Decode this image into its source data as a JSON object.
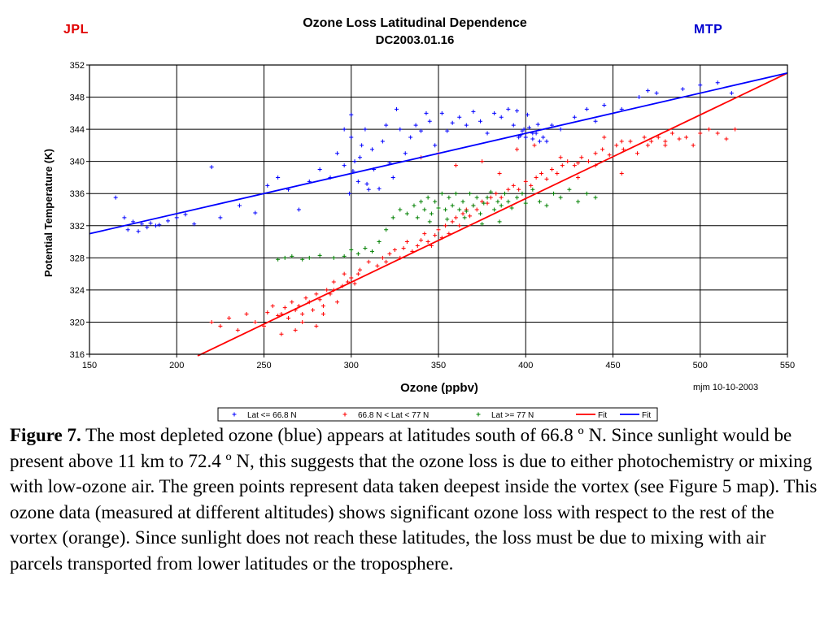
{
  "header": {
    "left_tag": "JPL",
    "right_tag": "MTP",
    "left_tag_color": "#e00000",
    "right_tag_color": "#0000d0"
  },
  "chart_data": {
    "type": "scatter",
    "title": "Ozone Loss Latitudinal Dependence",
    "subtitle": "DC2003.01.16",
    "xlabel": "Ozone (ppbv)",
    "ylabel": "Potential Temperature (K)",
    "xlim": [
      150,
      550
    ],
    "ylim": [
      316,
      352
    ],
    "xticks": [
      150,
      200,
      250,
      300,
      350,
      400,
      450,
      500,
      550
    ],
    "yticks": [
      316,
      320,
      324,
      328,
      332,
      336,
      340,
      344,
      348,
      352
    ],
    "grid": true,
    "credit": "mjm 10-10-2003",
    "legend_position": "bottom",
    "series": [
      {
        "name": "Lat <= 66.8 N",
        "color": "#0000ff",
        "marker": "plus",
        "x": [
          165,
          170,
          175,
          180,
          185,
          190,
          195,
          172,
          178,
          183,
          188,
          200,
          205,
          210,
          220,
          225,
          236,
          245,
          252,
          258,
          264,
          270,
          276,
          282,
          288,
          292,
          296,
          300,
          300,
          302,
          304,
          306,
          308,
          310,
          312,
          296,
          299,
          301,
          305,
          309,
          313,
          316,
          318,
          320,
          322,
          324,
          326,
          328,
          331,
          334,
          337,
          340,
          343,
          345,
          348,
          352,
          355,
          358,
          362,
          366,
          370,
          374,
          378,
          382,
          386,
          390,
          393,
          396,
          398,
          400,
          402,
          404,
          406,
          408,
          395,
          397,
          399,
          401,
          404,
          407,
          410,
          412,
          415,
          420,
          428,
          435,
          445,
          455,
          465,
          475,
          490,
          500,
          510,
          518,
          440,
          470
        ],
        "y": [
          335.5,
          333.0,
          332.5,
          332.2,
          332.3,
          332.1,
          332.6,
          331.5,
          331.3,
          331.8,
          332.0,
          333.0,
          333.4,
          332.2,
          339.3,
          333.0,
          334.5,
          333.6,
          337.0,
          338.0,
          336.5,
          334.0,
          337.5,
          339.0,
          338.0,
          341.0,
          344.0,
          345.8,
          343.0,
          340.0,
          337.5,
          342.0,
          344.0,
          336.5,
          341.5,
          339.5,
          336.0,
          338.8,
          340.5,
          337.2,
          339.0,
          336.6,
          342.5,
          344.5,
          339.8,
          338.0,
          346.5,
          344.0,
          341.0,
          343.0,
          344.5,
          343.8,
          346.0,
          345.0,
          342.0,
          346.0,
          343.8,
          344.8,
          345.5,
          344.5,
          346.2,
          345.0,
          343.5,
          346.0,
          345.5,
          346.5,
          344.5,
          343.0,
          343.8,
          343.0,
          344.2,
          342.8,
          343.5,
          342.5,
          346.3,
          343.2,
          344.0,
          345.8,
          343.5,
          344.6,
          343.0,
          342.5,
          344.5,
          344.0,
          345.5,
          346.5,
          347.0,
          346.5,
          348.0,
          348.5,
          349.0,
          349.5,
          349.8,
          348.5,
          345.0,
          348.8
        ]
      },
      {
        "name": "66.8 N < Lat < 77 N",
        "color": "#ff0000",
        "marker": "plus",
        "x": [
          220,
          225,
          230,
          235,
          240,
          245,
          250,
          252,
          255,
          258,
          260,
          262,
          264,
          266,
          268,
          270,
          272,
          274,
          276,
          278,
          280,
          282,
          284,
          286,
          288,
          290,
          292,
          295,
          298,
          300,
          302,
          304,
          260,
          268,
          272,
          280,
          284,
          290,
          296,
          305,
          310,
          315,
          318,
          320,
          322,
          325,
          328,
          330,
          332,
          335,
          338,
          340,
          342,
          344,
          346,
          348,
          350,
          352,
          354,
          356,
          358,
          360,
          362,
          364,
          366,
          368,
          370,
          372,
          375,
          378,
          380,
          383,
          386,
          390,
          393,
          396,
          400,
          403,
          406,
          409,
          412,
          415,
          418,
          421,
          424,
          428,
          432,
          436,
          440,
          444,
          448,
          452,
          456,
          460,
          464,
          468,
          472,
          476,
          480,
          484,
          488,
          492,
          496,
          500,
          505,
          510,
          515,
          520,
          340,
          350,
          360,
          375,
          385,
          395,
          405,
          420,
          430,
          445,
          455,
          470,
          480,
          430,
          440,
          455
        ],
        "y": [
          320.0,
          319.5,
          320.5,
          319.0,
          321.0,
          320.0,
          319.5,
          321.2,
          322.0,
          320.8,
          321.0,
          321.8,
          320.5,
          322.5,
          321.5,
          322.0,
          321.0,
          323.0,
          322.5,
          321.5,
          323.5,
          322.8,
          322.0,
          324.0,
          323.5,
          324.0,
          322.5,
          324.5,
          325.0,
          325.5,
          324.8,
          326.0,
          318.5,
          319.0,
          320.0,
          319.5,
          321.0,
          325.0,
          326.0,
          326.5,
          327.5,
          327.0,
          328.0,
          327.5,
          328.5,
          329.0,
          328.0,
          329.2,
          330.0,
          328.8,
          329.5,
          330.2,
          331.0,
          330.0,
          329.5,
          330.8,
          331.5,
          330.5,
          332.0,
          331.0,
          332.5,
          333.0,
          332.0,
          333.5,
          334.0,
          333.2,
          334.5,
          334.0,
          335.0,
          334.8,
          335.5,
          336.0,
          335.5,
          336.5,
          337.0,
          336.5,
          337.5,
          337.0,
          338.0,
          338.5,
          337.8,
          339.0,
          338.5,
          339.5,
          340.0,
          339.5,
          340.5,
          340.0,
          341.0,
          341.5,
          340.8,
          342.0,
          341.5,
          342.5,
          341.0,
          343.0,
          342.5,
          343.0,
          342.0,
          343.5,
          342.8,
          343.0,
          342.0,
          343.5,
          344.0,
          343.5,
          342.8,
          344.0,
          340.5,
          341.0,
          339.5,
          340.0,
          338.5,
          341.5,
          342.0,
          340.5,
          339.8,
          343.0,
          342.5,
          342.0,
          342.5,
          338.0,
          339.5,
          338.5
        ]
      },
      {
        "name": "Lat >= 77 N",
        "color": "#008000",
        "marker": "plus",
        "x": [
          258,
          262,
          266,
          272,
          276,
          282,
          290,
          296,
          300,
          304,
          308,
          312,
          316,
          320,
          324,
          328,
          332,
          336,
          338,
          340,
          342,
          344,
          346,
          348,
          350,
          352,
          354,
          356,
          358,
          360,
          362,
          364,
          366,
          368,
          370,
          372,
          374,
          376,
          378,
          380,
          382,
          384,
          386,
          388,
          390,
          392,
          395,
          398,
          400,
          404,
          408,
          412,
          416,
          420,
          425,
          430,
          435,
          440,
          345,
          355,
          365,
          375,
          385
        ],
        "y": [
          327.8,
          328.0,
          328.2,
          327.8,
          328.0,
          328.3,
          328.0,
          328.2,
          329.0,
          328.5,
          329.2,
          328.8,
          330.0,
          331.5,
          333.0,
          334.0,
          333.5,
          334.5,
          333.0,
          335.0,
          334.0,
          335.5,
          333.5,
          335.0,
          334.2,
          336.0,
          334.0,
          335.5,
          334.5,
          336.0,
          334.0,
          335.0,
          333.8,
          336.0,
          334.5,
          335.5,
          333.5,
          334.8,
          335.5,
          336.2,
          334.0,
          335.0,
          334.5,
          336.0,
          335.0,
          334.2,
          335.5,
          336.0,
          334.8,
          336.5,
          335.0,
          334.5,
          336.0,
          335.5,
          336.5,
          335.0,
          336.0,
          335.5,
          332.5,
          332.8,
          333.0,
          332.2,
          332.5
        ]
      },
      {
        "name": "Fit",
        "color": "#ff0000",
        "type": "line",
        "x": [
          212,
          550
        ],
        "y": [
          315.8,
          351.0
        ]
      },
      {
        "name": "Fit",
        "color": "#0000ff",
        "type": "line",
        "x": [
          150,
          550
        ],
        "y": [
          331.0,
          351.0
        ]
      }
    ]
  },
  "caption": {
    "label": "Figure 7.",
    "text": " The most depleted ozone (blue) appears at latitudes south of 66.8 º N. Since sunlight would be present above 11 km to 72.4 º N, this suggests that the ozone loss is due to either photochemistry or mixing with low-ozone air. The green points represent data taken deepest inside the vortex (see Figure 5 map). This ozone data (measured at different altitudes) shows significant ozone loss with respect to the rest of the vortex (orange). Since sunlight does not reach these latitudes, the loss must be due to mixing with air parcels transported from lower latitudes or the troposphere."
  }
}
